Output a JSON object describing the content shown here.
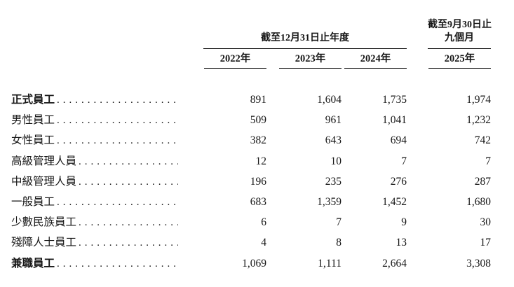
{
  "page": {
    "background": "#ffffff",
    "text_color": "#161616",
    "rule_color": "#000000"
  },
  "table": {
    "col_groups": [
      {
        "label": "截至12月31日止年度"
      },
      {
        "label_line1": "截至9月30日止",
        "label_line2": "九個月"
      }
    ],
    "columns": [
      "2022年",
      "2023年",
      "2024年",
      "2025年"
    ],
    "leader_dots": "............................................",
    "rows": [
      {
        "label": "正式員工",
        "values": [
          "891",
          "1,604",
          "1,735",
          "1,974"
        ]
      },
      {
        "label": "男性員工",
        "values": [
          "509",
          "961",
          "1,041",
          "1,232"
        ]
      },
      {
        "label": "女性員工",
        "values": [
          "382",
          "643",
          "694",
          "742"
        ]
      },
      {
        "label": "高級管理人員",
        "values": [
          "12",
          "10",
          "7",
          "7"
        ]
      },
      {
        "label": "中級管理人員",
        "values": [
          "196",
          "235",
          "276",
          "287"
        ]
      },
      {
        "label": "一般員工",
        "values": [
          "683",
          "1,359",
          "1,452",
          "1,680"
        ]
      },
      {
        "label": "少數民族員工",
        "values": [
          "6",
          "7",
          "9",
          "30"
        ]
      },
      {
        "label": "殘障人士員工",
        "values": [
          "4",
          "8",
          "13",
          "17"
        ]
      },
      {
        "label": "兼職員工",
        "values": [
          "1,069",
          "1,111",
          "2,664",
          "3,308"
        ]
      }
    ]
  }
}
